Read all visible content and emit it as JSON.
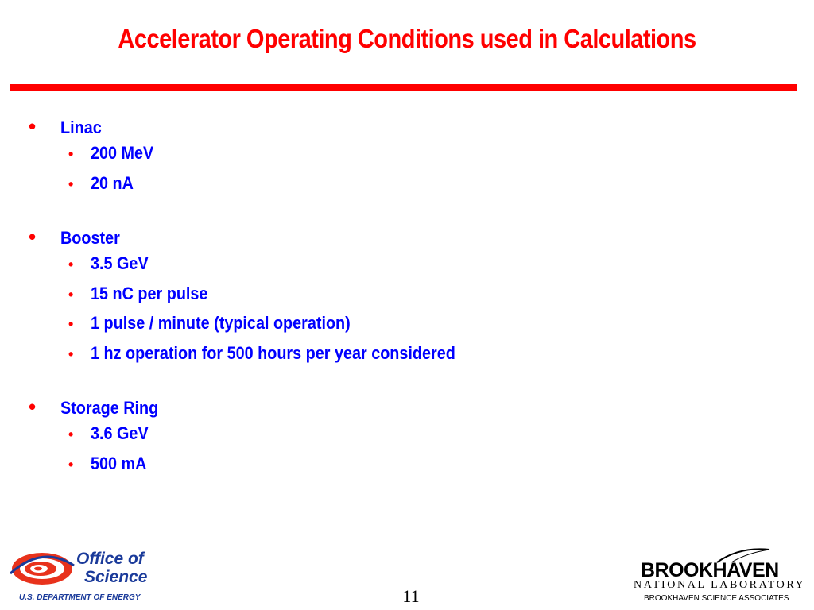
{
  "slide": {
    "title": "Accelerator Operating Conditions used in Calculations",
    "page_number": "11",
    "colors": {
      "title": "#ff0000",
      "text": "#0000ff",
      "rule": "#ff0000"
    }
  },
  "sections": [
    {
      "heading": "Linac",
      "items": [
        "200 MeV",
        "20 nA"
      ]
    },
    {
      "heading": "Booster",
      "items": [
        "3.5 GeV",
        "15 nC per pulse",
        "1 pulse / minute (typical operation)",
        "1 hz operation for 500 hours per year considered"
      ]
    },
    {
      "heading": "Storage Ring",
      "items": [
        "3.6 GeV",
        "500 mA"
      ]
    }
  ],
  "footer": {
    "left_logo": {
      "line1": "Office of",
      "line2": "Science",
      "sub": "U.S. DEPARTMENT OF ENERGY",
      "icon": "doe-office-of-science-logo"
    },
    "right_logo": {
      "name": "BROOKHAVEN",
      "line2": "NATIONAL LABORATORY",
      "sub": "BROOKHAVEN SCIENCE ASSOCIATES",
      "icon": "bnl-swoosh-logo"
    }
  }
}
